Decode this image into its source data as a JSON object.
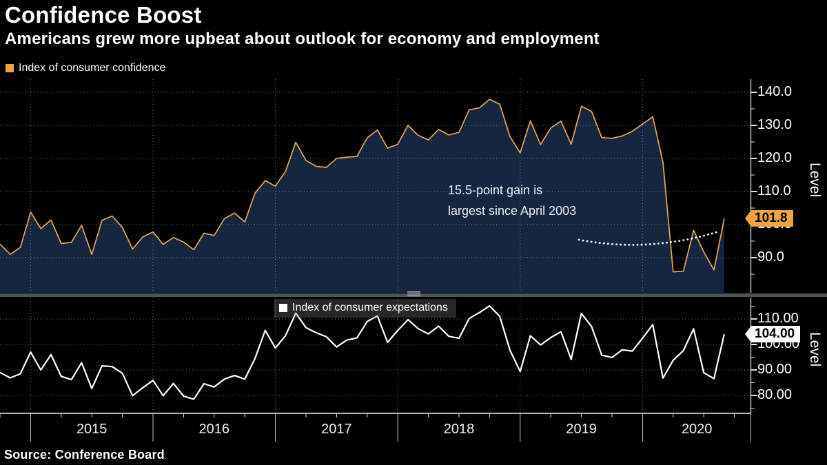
{
  "header": {
    "title": "Confidence Boost",
    "subtitle": "Americans grew more upbeat about outlook for economy and employment"
  },
  "footer": {
    "source": "Source:  Conference Board"
  },
  "colors": {
    "background": "#000000",
    "confidence_line": "#E9A84F",
    "confidence_fill": "#16263F",
    "confidence_badge": "#F1A43E",
    "expectations_line": "#FFFFFF",
    "expectations_badge": "#FFFFFF",
    "gridline": "#9097A3",
    "axis": "#E2E2E2",
    "annotation_arc": "#FFFFFF",
    "divider": "#50555C",
    "divider_grip": "#A6ABB3"
  },
  "x_axis": {
    "years": [
      "2015",
      "2016",
      "2017",
      "2018",
      "2019",
      "2020"
    ]
  },
  "chart_data": [
    {
      "type": "area",
      "name": "consumer-confidence",
      "legend": "Index of consumer confidence",
      "ylabel": "Level",
      "frequency": "monthly",
      "x_start": "2014-10",
      "x_end": "2020-09",
      "ylim": [
        79.4,
        144
      ],
      "yticks": [
        {
          "value": 140,
          "label": "140.0"
        },
        {
          "value": 130,
          "label": "130.0"
        },
        {
          "value": 120,
          "label": "120.0"
        },
        {
          "value": 110,
          "label": "110.0"
        },
        {
          "value": 100,
          "label": "100.0"
        },
        {
          "value": 90,
          "label": "90.0"
        }
      ],
      "last_value": 101.8,
      "last_value_label": "101.8",
      "annotation": {
        "line1": "15.5-point gain is",
        "line2": "largest since April 2003"
      },
      "values": [
        94.1,
        91.0,
        93.1,
        103.8,
        98.8,
        101.4,
        94.3,
        94.6,
        99.8,
        91.0,
        101.3,
        102.6,
        99.1,
        92.6,
        96.3,
        97.8,
        94.0,
        96.1,
        94.7,
        92.4,
        97.4,
        96.7,
        101.8,
        103.5,
        100.8,
        109.5,
        113.3,
        111.6,
        116.1,
        124.9,
        119.4,
        117.6,
        117.3,
        120.0,
        120.4,
        120.6,
        126.2,
        128.6,
        123.1,
        124.3,
        130.0,
        127.0,
        125.6,
        128.8,
        127.1,
        127.9,
        134.7,
        135.3,
        137.9,
        136.4,
        126.6,
        121.7,
        131.4,
        124.2,
        129.2,
        131.3,
        124.3,
        135.8,
        134.2,
        126.3,
        126.1,
        126.8,
        128.2,
        130.4,
        132.6,
        118.8,
        85.7,
        85.9,
        98.3,
        91.7,
        86.3,
        101.8
      ]
    },
    {
      "type": "line",
      "name": "consumer-expectations",
      "legend": "Index of consumer expectations",
      "ylabel": "Level",
      "frequency": "monthly",
      "x_start": "2014-10",
      "x_end": "2020-09",
      "ylim": [
        73,
        117.6
      ],
      "yticks": [
        {
          "value": 110,
          "label": "110.00"
        },
        {
          "value": 100,
          "label": "100.00"
        },
        {
          "value": 90,
          "label": "90.00"
        },
        {
          "value": 80,
          "label": "80.00"
        }
      ],
      "last_value": 104.0,
      "last_value_label": "104.00",
      "values": [
        89.0,
        86.9,
        88.5,
        97.0,
        90.0,
        96.0,
        87.5,
        86.2,
        92.8,
        82.7,
        91.6,
        91.3,
        88.7,
        79.9,
        83.0,
        85.9,
        79.9,
        84.7,
        79.7,
        78.5,
        84.6,
        83.3,
        86.4,
        87.8,
        86.4,
        94.5,
        105.5,
        98.6,
        103.5,
        112.3,
        106.6,
        104.6,
        103.0,
        99.0,
        101.7,
        102.6,
        109.0,
        111.2,
        100.8,
        105.5,
        109.7,
        106.2,
        104.1,
        107.2,
        103.2,
        102.4,
        110.2,
        112.5,
        115.1,
        111.0,
        97.7,
        89.4,
        103.4,
        99.8,
        102.7,
        105.0,
        94.1,
        112.2,
        107.0,
        95.8,
        94.9,
        97.9,
        97.4,
        102.5,
        107.8,
        86.8,
        93.8,
        97.6,
        106.1,
        88.9,
        86.6,
        104.0
      ]
    }
  ]
}
